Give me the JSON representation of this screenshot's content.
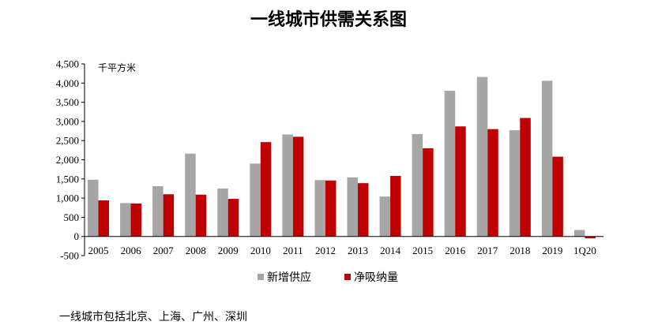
{
  "chart_data": {
    "type": "bar",
    "title": "一线城市供需关系图",
    "unit_label": "千平方米",
    "categories": [
      "2005",
      "2006",
      "2007",
      "2008",
      "2009",
      "2010",
      "2011",
      "2012",
      "2013",
      "2014",
      "2015",
      "2016",
      "2017",
      "2018",
      "2019",
      "1Q20"
    ],
    "series": [
      {
        "name": "新增供应",
        "color": "#a6a6a6",
        "values": [
          1480,
          870,
          1310,
          2160,
          1250,
          1900,
          2660,
          1470,
          1540,
          1040,
          2670,
          3800,
          4160,
          2770,
          4060,
          170
        ]
      },
      {
        "name": "净吸纳量",
        "color": "#c00000",
        "values": [
          940,
          860,
          1100,
          1090,
          980,
          2460,
          2600,
          1460,
          1390,
          1580,
          2300,
          2870,
          2800,
          3090,
          2080,
          -50
        ]
      }
    ],
    "ylim": [
      -500,
      4500
    ],
    "yticks": [
      "-500",
      "0",
      "500",
      "1,000",
      "1,500",
      "2,000",
      "2,500",
      "3,000",
      "3,500",
      "4,000",
      "4,500"
    ],
    "ytick_values": [
      -500,
      0,
      500,
      1000,
      1500,
      2000,
      2500,
      3000,
      3500,
      4000,
      4500
    ],
    "grid": false,
    "legend_position": "bottom-center"
  },
  "footnote": "一线城市包括北京、上海、广州、深圳"
}
